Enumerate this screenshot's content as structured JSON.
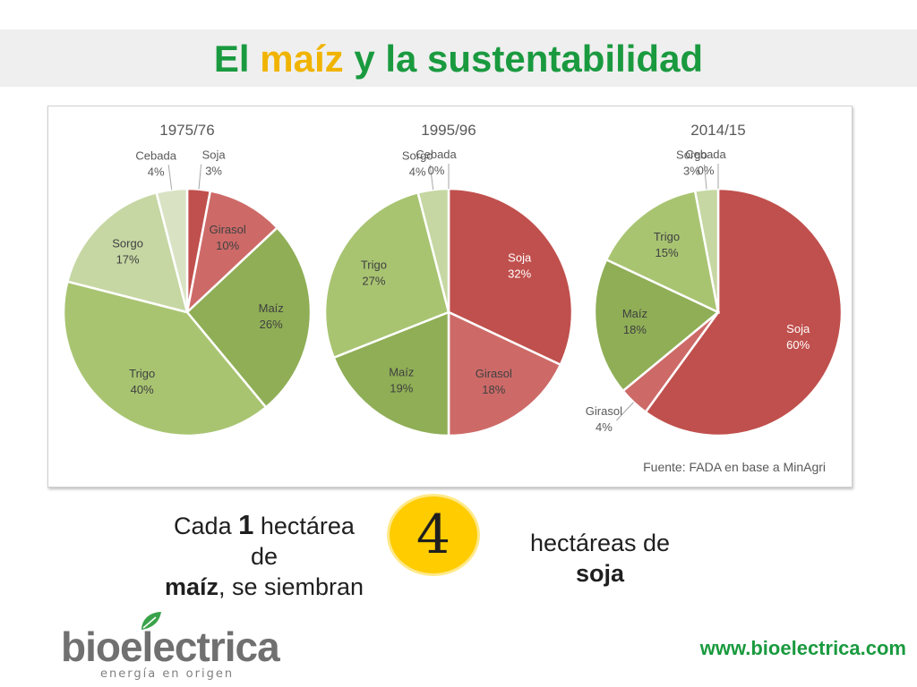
{
  "slide": {
    "title_part1": "El",
    "title_accent": "maíz",
    "title_part2": "y la sustentabilidad",
    "colors": {
      "title_green": "#1a9a3f",
      "title_accent": "#f0b400"
    }
  },
  "chart_data": [
    {
      "type": "pie",
      "title": "1975/76",
      "slices": [
        {
          "label": "Soja",
          "value": 3,
          "color": "#c0504d"
        },
        {
          "label": "Girasol",
          "value": 10,
          "color": "#cd6a68"
        },
        {
          "label": "Maíz",
          "value": 26,
          "color": "#8fae56"
        },
        {
          "label": "Trigo",
          "value": 40,
          "color": "#a8c471"
        },
        {
          "label": "Sorgo",
          "value": 17,
          "color": "#c6d7a3"
        },
        {
          "label": "Cebada",
          "value": 4,
          "color": "#d9e3c4"
        }
      ]
    },
    {
      "type": "pie",
      "title": "1995/96",
      "slices": [
        {
          "label": "Soja",
          "value": 32,
          "color": "#c0504d"
        },
        {
          "label": "Girasol",
          "value": 18,
          "color": "#cd6a68"
        },
        {
          "label": "Maíz",
          "value": 19,
          "color": "#8fae56"
        },
        {
          "label": "Trigo",
          "value": 27,
          "color": "#a8c471"
        },
        {
          "label": "Sorgo",
          "value": 4,
          "color": "#c6d7a3"
        },
        {
          "label": "Cebada",
          "value": 0,
          "color": "#d9e3c4"
        }
      ]
    },
    {
      "type": "pie",
      "title": "2014/15",
      "slices": [
        {
          "label": "Soja",
          "value": 60,
          "color": "#c0504d"
        },
        {
          "label": "Girasol",
          "value": 4,
          "color": "#cd6a68"
        },
        {
          "label": "Maíz",
          "value": 18,
          "color": "#8fae56"
        },
        {
          "label": "Trigo",
          "value": 15,
          "color": "#a8c471"
        },
        {
          "label": "Sorgo",
          "value": 3,
          "color": "#c6d7a3"
        },
        {
          "label": "Cebada",
          "value": 0,
          "color": "#d9e3c4"
        }
      ]
    }
  ],
  "source_note": "Fuente: FADA en base a MinAgri",
  "phrase": {
    "left_prefix": "Cada",
    "left_number": "1",
    "left_word": "hectárea",
    "left_line2": "de",
    "left_bold": "maíz",
    "left_suffix": ", se siembran",
    "badge_number": "4",
    "right_line1": "hectáreas de",
    "right_bold": "soja",
    "badge_color": "#ffcc00"
  },
  "logo": {
    "name": "bioelectrica",
    "tagline": "energía en origen"
  },
  "website": "www.bioelectrica.com"
}
